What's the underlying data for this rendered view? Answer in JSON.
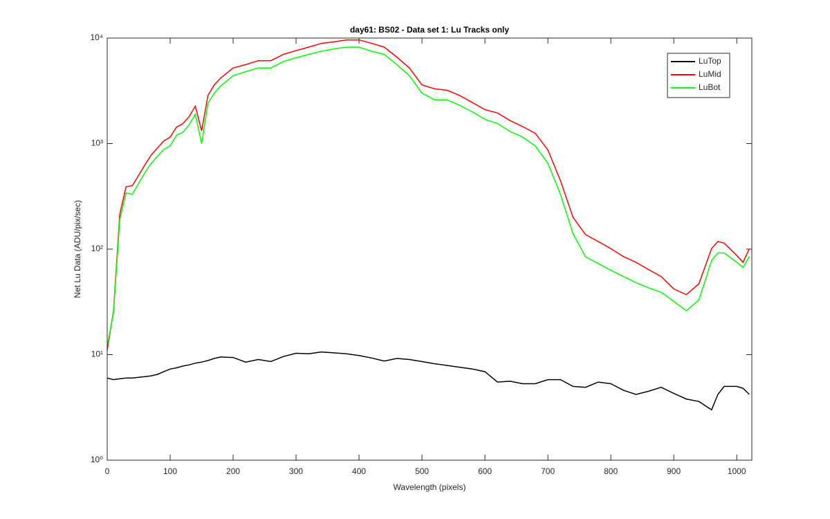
{
  "chart_data": {
    "type": "line",
    "title": "day61: BS02 - Data set 1: Lu Tracks only",
    "x_label": "Wavelength (pixels)",
    "y_label": "Net Lu Data (ADU/pix/sec)",
    "y_scale": "log",
    "legend": "top-right",
    "xlim": [
      0,
      1024
    ],
    "xticks": [
      0,
      100,
      200,
      300,
      400,
      500,
      600,
      700,
      800,
      900,
      1000
    ],
    "ylim": [
      1,
      10000
    ],
    "yticks": [
      {
        "value": 1,
        "label": "10⁰"
      },
      {
        "value": 10,
        "label": "10¹"
      },
      {
        "value": 100,
        "label": "10²"
      },
      {
        "value": 1000,
        "label": "10³"
      },
      {
        "value": 10000,
        "label": "10⁴"
      }
    ],
    "x": [
      0,
      10,
      20,
      30,
      40,
      50,
      60,
      70,
      80,
      90,
      100,
      110,
      120,
      130,
      140,
      150,
      160,
      170,
      180,
      200,
      220,
      240,
      260,
      280,
      300,
      320,
      340,
      360,
      380,
      400,
      420,
      440,
      460,
      480,
      500,
      520,
      540,
      560,
      580,
      600,
      620,
      640,
      660,
      680,
      700,
      720,
      740,
      760,
      780,
      800,
      820,
      840,
      860,
      880,
      900,
      920,
      940,
      960,
      970,
      980,
      1000,
      1010,
      1020
    ],
    "series": [
      {
        "name": "LuTop",
        "color": "#000000",
        "values": [
          6,
          5.8,
          5.9,
          6,
          6,
          6.1,
          6.2,
          6.3,
          6.5,
          6.9,
          7.3,
          7.5,
          7.8,
          8,
          8.3,
          8.5,
          8.8,
          9.2,
          9.5,
          9.4,
          8.5,
          9,
          8.6,
          9.6,
          10.3,
          10.2,
          10.6,
          10.4,
          10.2,
          9.8,
          9.3,
          8.7,
          9.2,
          9,
          8.6,
          8.2,
          7.9,
          7.6,
          7.3,
          6.9,
          5.5,
          5.6,
          5.3,
          5.3,
          5.8,
          5.8,
          5,
          4.9,
          5.5,
          5.3,
          4.6,
          4.2,
          4.5,
          4.9,
          4.3,
          3.8,
          3.6,
          3.0,
          4.2,
          5,
          5,
          4.8,
          4.2
        ]
      },
      {
        "name": "LuMid",
        "color": "#ff0000",
        "values": [
          11,
          26,
          215,
          390,
          400,
          500,
          630,
          780,
          910,
          1060,
          1150,
          1430,
          1540,
          1800,
          2260,
          1320,
          2850,
          3600,
          4170,
          5200,
          5600,
          6100,
          6100,
          7000,
          7600,
          8200,
          8900,
          9200,
          9600,
          9600,
          8900,
          8200,
          6600,
          5200,
          3600,
          3300,
          3200,
          2850,
          2450,
          2100,
          1950,
          1650,
          1450,
          1250,
          870,
          445,
          200,
          137,
          118,
          101,
          85,
          75,
          64,
          55,
          42,
          37,
          47,
          101,
          118,
          114,
          87,
          75,
          101
        ]
      },
      {
        "name": "LuBot",
        "color": "#00ff00",
        "values": [
          12,
          25,
          190,
          340,
          330,
          420,
          530,
          650,
          760,
          880,
          950,
          1200,
          1280,
          1500,
          1900,
          1000,
          2400,
          3000,
          3500,
          4400,
          4800,
          5200,
          5200,
          6000,
          6500,
          7000,
          7500,
          7900,
          8200,
          8200,
          7500,
          7000,
          5600,
          4400,
          3000,
          2600,
          2600,
          2300,
          2000,
          1700,
          1550,
          1300,
          1150,
          950,
          650,
          330,
          140,
          84,
          73,
          63,
          55,
          48,
          43,
          39,
          32,
          26,
          33,
          78,
          92,
          92,
          75,
          67,
          85
        ]
      }
    ]
  }
}
